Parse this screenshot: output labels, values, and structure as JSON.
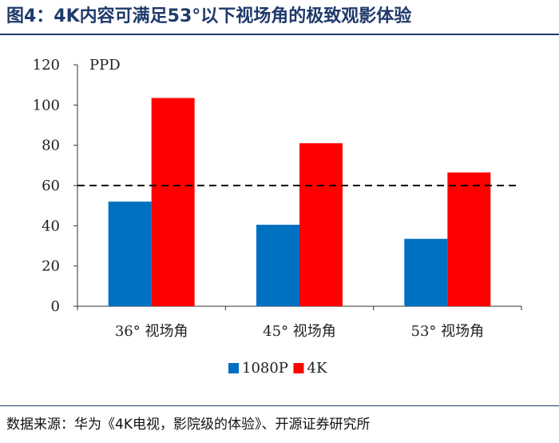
{
  "title": "图4：4K内容可满足53°以下视场角的极致观影体验",
  "source": "数据来源：华为《4K电视，影院级的体验》、开源证券研究所",
  "chart_data": {
    "type": "bar",
    "title": "图4：4K内容可满足53°以下视场角的极致观影体验",
    "ylabel": "PPD",
    "categories": [
      "36°  视场角",
      "45°  视场角",
      "53°  视场角"
    ],
    "series": [
      {
        "name": "1080P",
        "color": "#0070c0",
        "values": [
          52,
          40.5,
          33.5
        ]
      },
      {
        "name": "4K",
        "color": "#ff0000",
        "values": [
          103.5,
          81,
          66.5
        ]
      }
    ],
    "ylim": [
      0,
      120
    ],
    "yticks": [
      0,
      20,
      40,
      60,
      80,
      100,
      120
    ],
    "reference_line": {
      "y": 60,
      "style": "dashed",
      "color": "#000000"
    },
    "grid": false,
    "legend": "bottom"
  }
}
